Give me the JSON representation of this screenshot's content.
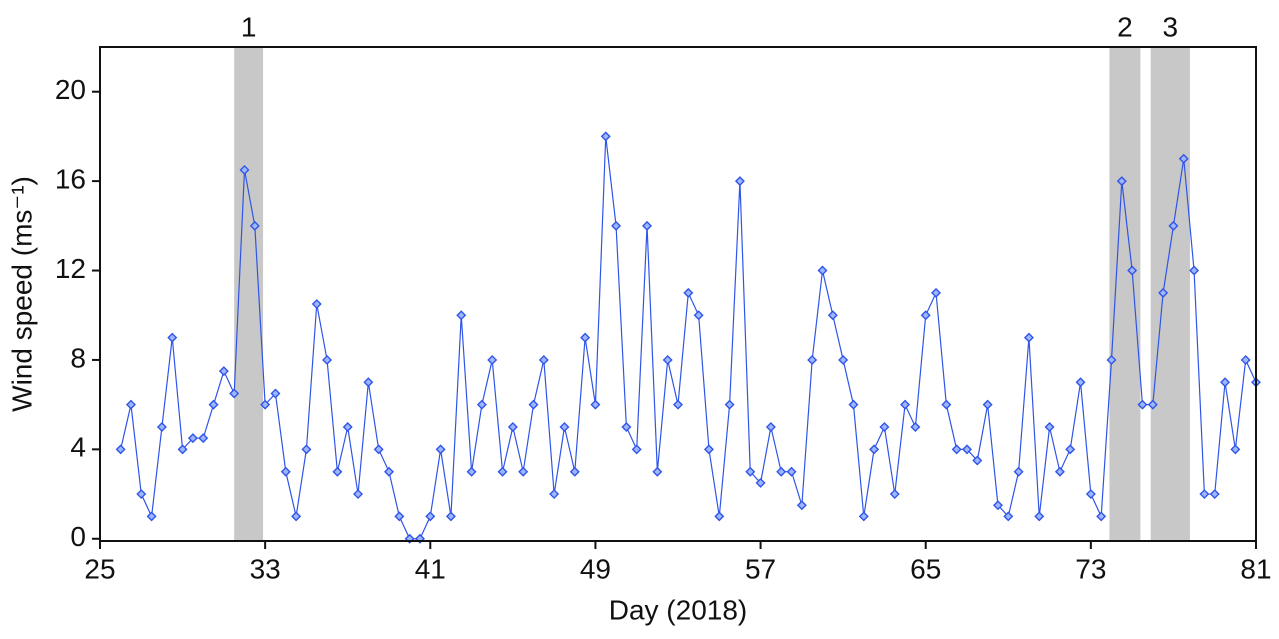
{
  "chart_data": {
    "type": "line",
    "x_label": "Day (2018)",
    "y_label": "Wind speed (ms⁻¹)",
    "xlim": [
      25,
      81
    ],
    "xticks": [
      25,
      33,
      41,
      49,
      57,
      65,
      73,
      81
    ],
    "ylim": [
      -0.1,
      22
    ],
    "yticks": [
      0,
      4,
      8,
      12,
      16,
      20
    ],
    "shaded_regions": [
      {
        "label": "1",
        "xlim": [
          31.5,
          32.9
        ]
      },
      {
        "label": "2",
        "xlim": [
          73.9,
          75.4
        ]
      },
      {
        "label": "3",
        "xlim": [
          75.9,
          77.8
        ]
      }
    ],
    "region_color": "#c8c8c8",
    "x": [
      26,
      26.5,
      27,
      27.5,
      28,
      28.5,
      29,
      29.5,
      30,
      30.5,
      31,
      31.5,
      32,
      32.5,
      33,
      33.5,
      34,
      34.5,
      35,
      35.5,
      36,
      36.5,
      37,
      37.5,
      38,
      38.5,
      39,
      39.5,
      40,
      40.5,
      41,
      41.5,
      42,
      42.5,
      43,
      43.5,
      44,
      44.5,
      45,
      45.5,
      46,
      46.5,
      47,
      47.5,
      48,
      48.5,
      49,
      49.5,
      50,
      50.5,
      51,
      51.5,
      52,
      52.5,
      53,
      53.5,
      54,
      54.5,
      55,
      55.5,
      56,
      56.5,
      57,
      57.5,
      58,
      58.5,
      59,
      59.5,
      60,
      60.5,
      61,
      61.5,
      62,
      62.5,
      63,
      63.5,
      64,
      64.5,
      65,
      65.5,
      66,
      66.5,
      67,
      67.5,
      68,
      68.5,
      69,
      69.5,
      70,
      70.5,
      71,
      71.5,
      72,
      72.5,
      73,
      73.5,
      74,
      74.5,
      75,
      75.5,
      76,
      76.5,
      77,
      77.5,
      78,
      78.5,
      79,
      79.5,
      80,
      80.5,
      81
    ],
    "series": [
      {
        "name": "Wind speed",
        "color": "#2f55e8",
        "values": [
          4,
          6,
          2,
          1,
          5,
          9,
          4,
          4.5,
          4.5,
          6,
          7.5,
          6.5,
          16.5,
          14,
          6,
          6.5,
          3,
          1,
          4,
          10.5,
          8,
          3,
          5,
          2,
          7,
          4,
          3,
          1,
          0,
          0,
          1,
          4,
          1,
          10,
          3,
          6,
          8,
          3,
          5,
          3,
          6,
          8,
          2,
          5,
          3,
          9,
          6,
          18,
          14,
          5,
          4,
          14,
          3,
          8,
          6,
          11,
          10,
          4,
          1,
          6,
          16,
          3,
          2.5,
          5,
          3,
          3,
          1.5,
          8,
          12,
          10,
          8,
          6,
          1,
          4,
          5,
          2,
          6,
          5,
          10,
          11,
          6,
          4,
          4,
          3.5,
          6,
          1.5,
          1,
          3,
          9,
          1,
          5,
          3,
          4,
          7,
          2,
          1,
          8,
          16,
          12,
          6,
          6,
          11,
          14,
          17,
          12,
          2,
          2,
          7,
          4,
          8,
          7
        ]
      }
    ]
  }
}
